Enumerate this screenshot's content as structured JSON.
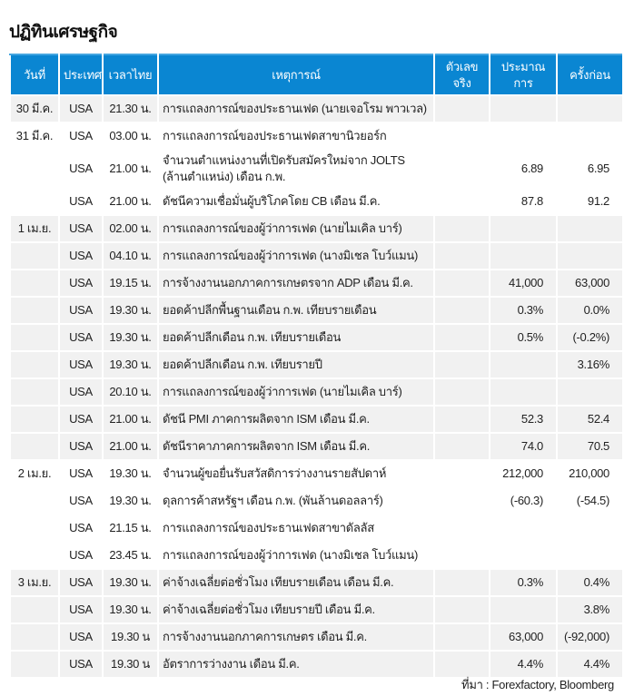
{
  "title": "ปฏิทินเศรษฐกิจ",
  "table": {
    "headers": [
      "วันที่",
      "ประเทศ",
      "เวลาไทย",
      "เหตุการณ์",
      "ตัวเลขจริง",
      "ประมาณการ",
      "ครั้งก่อน"
    ],
    "groups": [
      {
        "date": "30 มี.ค.",
        "shade": "grey",
        "rows": [
          {
            "country": "USA",
            "time": "21.30 น.",
            "event": "การแถลงการณ์ของประธานเฟด (นายเจอโรม พาวเวล)",
            "actual": "",
            "forecast": "",
            "previous": ""
          }
        ]
      },
      {
        "date": "31 มี.ค.",
        "shade": "white",
        "rows": [
          {
            "country": "USA",
            "time": "03.00 น.",
            "event": "การแถลงการณ์ของประธานเฟดสาขานิวยอร์ก",
            "actual": "",
            "forecast": "",
            "previous": ""
          },
          {
            "country": "USA",
            "time": "21.00 น.",
            "event": "จำนวนตำแหน่งงานที่เปิดรับสมัครใหม่จาก JOLTS (ล้านตำแหน่ง) เดือน ก.พ.",
            "actual": "",
            "forecast": "6.89",
            "previous": "6.95"
          },
          {
            "country": "USA",
            "time": "21.00 น.",
            "event": "ดัชนีความเชื่อมั่นผู้บริโภคโดย CB เดือน มี.ค.",
            "actual": "",
            "forecast": "87.8",
            "previous": "91.2"
          }
        ]
      },
      {
        "date": "1 เม.ย.",
        "shade": "grey",
        "rows": [
          {
            "country": "USA",
            "time": "02.00 น.",
            "event": "การแถลงการณ์ของผู้ว่าการเฟด (นายไมเคิล บาร์)",
            "actual": "",
            "forecast": "",
            "previous": ""
          },
          {
            "country": "USA",
            "time": "04.10 น.",
            "event": "การแถลงการณ์ของผู้ว่าการเฟด (นางมิเชล โบว์แมน)",
            "actual": "",
            "forecast": "",
            "previous": ""
          },
          {
            "country": "USA",
            "time": "19.15 น.",
            "event": "การจ้างงานนอกภาคการเกษตรจาก ADP เดือน มี.ค.",
            "actual": "",
            "forecast": "41,000",
            "previous": "63,000"
          },
          {
            "country": "USA",
            "time": "19.30 น.",
            "event": "ยอดค้าปลีกพื้นฐานเดือน ก.พ. เทียบรายเดือน",
            "actual": "",
            "forecast": "0.3%",
            "previous": "0.0%"
          },
          {
            "country": "USA",
            "time": "19.30 น.",
            "event": "ยอดค้าปลีกเดือน ก.พ. เทียบรายเดือน",
            "actual": "",
            "forecast": "0.5%",
            "previous": "(-0.2%)"
          },
          {
            "country": "USA",
            "time": "19.30 น.",
            "event": "ยอดค้าปลีกเดือน ก.พ. เทียบรายปี",
            "actual": "",
            "forecast": "",
            "previous": "3.16%"
          },
          {
            "country": "USA",
            "time": "20.10 น.",
            "event": "การแถลงการณ์ของผู้ว่าการเฟด (นายไมเคิล บาร์)",
            "actual": "",
            "forecast": "",
            "previous": ""
          },
          {
            "country": "USA",
            "time": "21.00 น.",
            "event": "ดัชนี PMI ภาคการผลิตจาก ISM เดือน มี.ค.",
            "actual": "",
            "forecast": "52.3",
            "previous": "52.4"
          },
          {
            "country": "USA",
            "time": "21.00 น.",
            "event": "ดัชนีราคาภาคการผลิตจาก ISM เดือน มี.ค.",
            "actual": "",
            "forecast": "74.0",
            "previous": "70.5"
          }
        ]
      },
      {
        "date": "2 เม.ย.",
        "shade": "white",
        "rows": [
          {
            "country": "USA",
            "time": "19.30 น.",
            "event": "จำนวนผู้ขอยื่นรับสวัสดิการว่างงานรายสัปดาห์",
            "actual": "",
            "forecast": "212,000",
            "previous": "210,000"
          },
          {
            "country": "USA",
            "time": "19.30 น.",
            "event": "ดุลการค้าสหรัฐฯ เดือน ก.พ. (พันล้านดอลลาร์)",
            "actual": "",
            "forecast": "(-60.3)",
            "previous": "(-54.5)"
          },
          {
            "country": "USA",
            "time": "21.15 น.",
            "event": "การแถลงการณ์ของประธานเฟดสาขาดัลลัส",
            "actual": "",
            "forecast": "",
            "previous": ""
          },
          {
            "country": "USA",
            "time": "23.45 น.",
            "event": "การแถลงการณ์ของผู้ว่าการเฟด (นางมิเชล โบว์แมน)",
            "actual": "",
            "forecast": "",
            "previous": ""
          }
        ]
      },
      {
        "date": "3 เม.ย.",
        "shade": "grey",
        "rows": [
          {
            "country": "USA",
            "time": "19.30 น.",
            "event": "ค่าจ้างเฉลี่ยต่อชั่วโมง เทียบรายเดือน เดือน มี.ค.",
            "actual": "",
            "forecast": "0.3%",
            "previous": "0.4%"
          },
          {
            "country": "USA",
            "time": "19.30 น.",
            "event": "ค่าจ้างเฉลี่ยต่อชั่วโมง เทียบรายปี เดือน มี.ค.",
            "actual": "",
            "forecast": "",
            "previous": "3.8%"
          },
          {
            "country": "USA",
            "time": "19.30 น",
            "event": "การจ้างงานนอกภาคการเกษตร เดือน มี.ค.",
            "actual": "",
            "forecast": "63,000",
            "previous": "(-92,000)"
          },
          {
            "country": "USA",
            "time": "19.30 น",
            "event": "อัตราการว่างงาน เดือน มี.ค.",
            "actual": "",
            "forecast": "4.4%",
            "previous": "4.4%"
          }
        ]
      }
    ]
  },
  "source": "ที่มา : Forexfactory, Bloomberg",
  "colors": {
    "header_bg": "#0a86d2",
    "row_shade": "#f1f1f1"
  }
}
